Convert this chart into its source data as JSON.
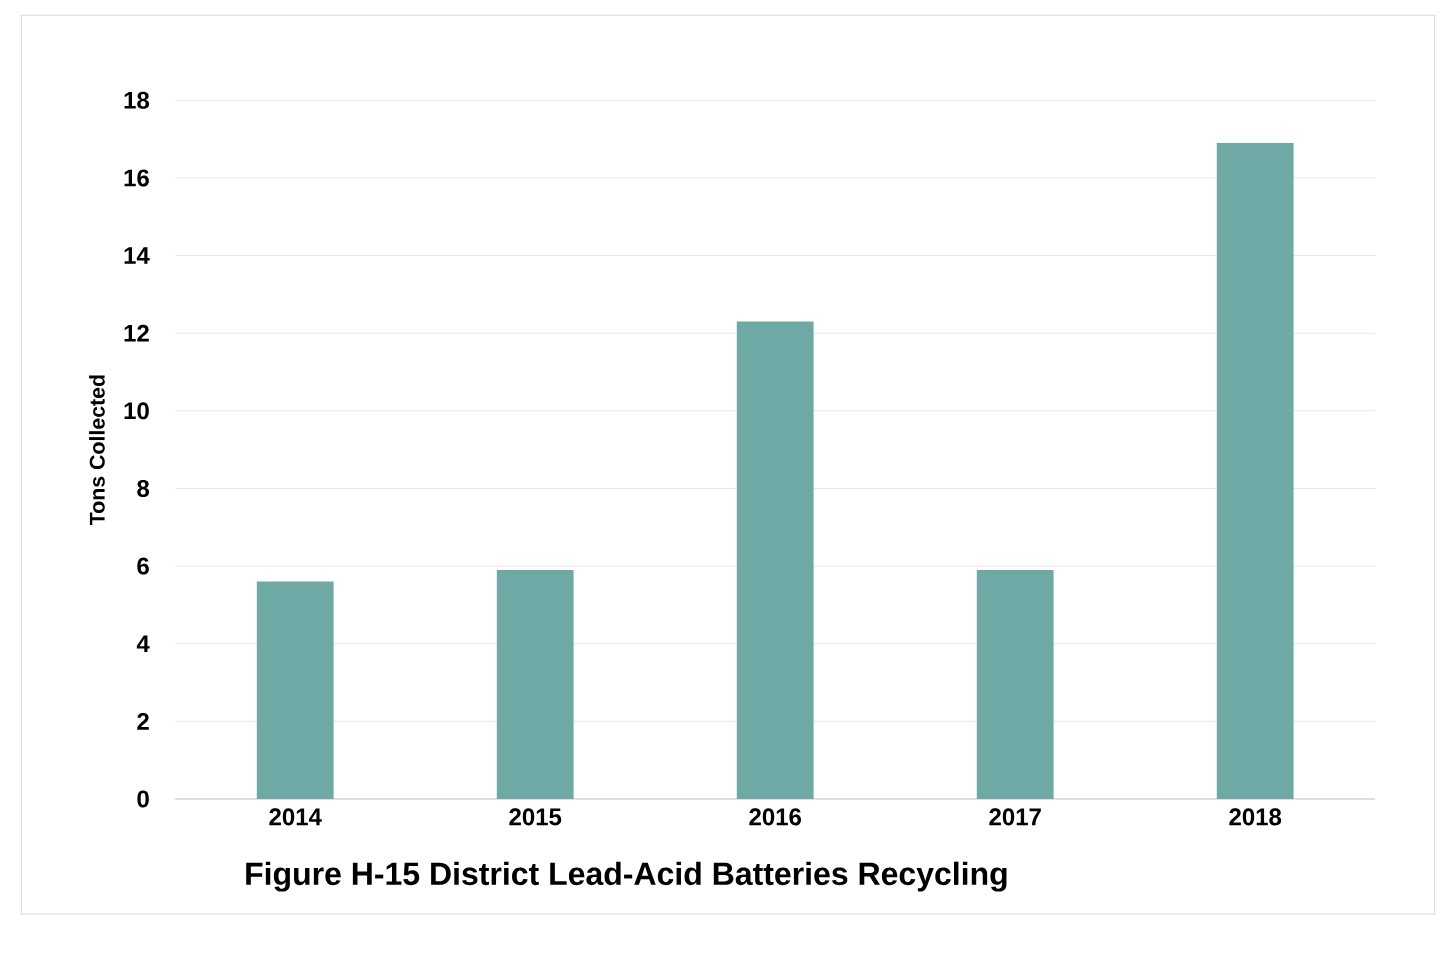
{
  "chart_data": {
    "type": "bar",
    "title": "Figure H-15 District Lead-Acid Batteries Recycling",
    "ylabel": "Tons Collected",
    "categories": [
      "2014",
      "2015",
      "2016",
      "2017",
      "2018"
    ],
    "values": [
      5.6,
      5.9,
      12.3,
      5.9,
      16.9
    ],
    "color": "#6ea9a5",
    "ylim": [
      0,
      18
    ],
    "yticks": [
      0,
      2,
      4,
      6,
      8,
      10,
      12,
      14,
      16,
      18
    ],
    "grid": "y"
  }
}
